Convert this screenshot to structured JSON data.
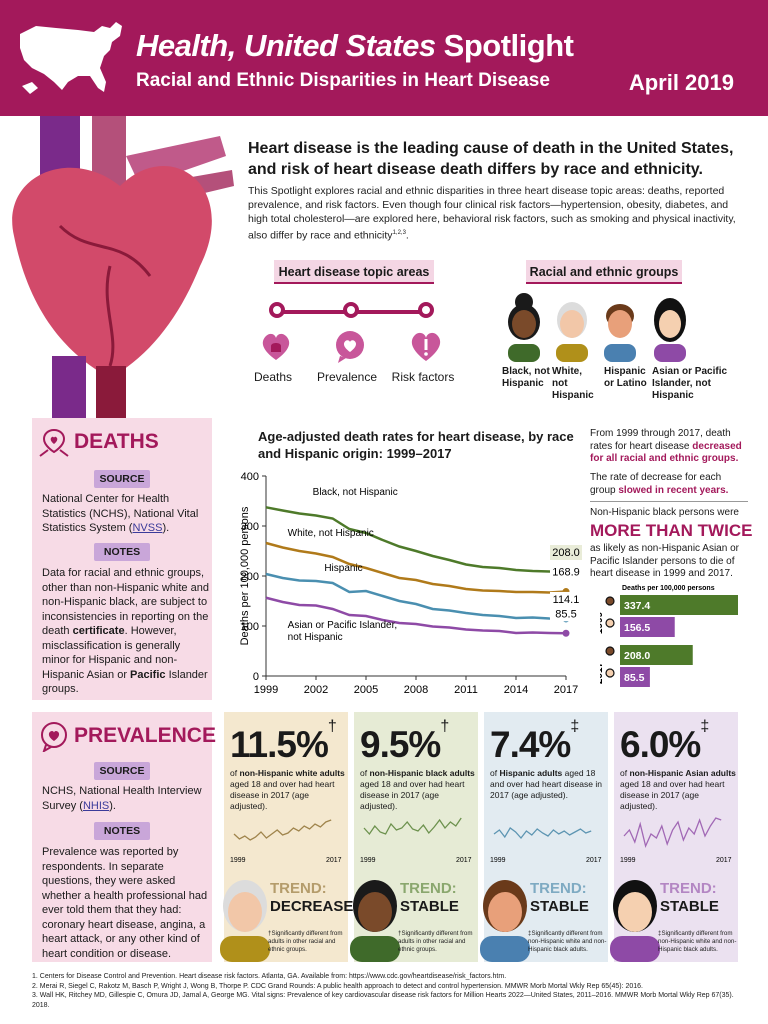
{
  "header": {
    "title_italic": "Health, United States",
    "title_rest": " Spotlight",
    "subtitle": "Racial and Ethnic Disparities in Heart Disease",
    "date": "April 2019"
  },
  "intro": {
    "headline": "Heart disease is the leading cause of death in the United States, and risk of heart disease death differs by race and ethnicity.",
    "body": "This Spotlight explores racial and ethnic disparities in three heart disease topic areas: deaths, reported prevalence, and risk factors. Even though four clinical risk factors—hypertension, obesity, diabetes, and high total cholesterol—are explored here, behavioral risk factors, such as smoking and physical inactivity, also differ by race and ethnicity",
    "body_sup": "1,2,3",
    "body_end": "."
  },
  "topics": {
    "heading": "Heart disease topic areas",
    "items": [
      "Deaths",
      "Prevalence",
      "Risk factors"
    ]
  },
  "groups": {
    "heading": "Racial and ethnic groups",
    "items": [
      "Black, not Hispanic",
      "White, not Hispanic",
      "Hispanic or Latino",
      "Asian or Pacific Islander, not Hispanic"
    ]
  },
  "deaths_panel": {
    "title": "DEATHS",
    "source_tag": "SOURCE",
    "source_text": "National Center for Health Statistics (NCHS), National Vital Statistics System (",
    "source_link": "NVSS",
    "source_end": ").",
    "notes_tag": "NOTES",
    "notes_text_1": "Data for racial and ethnic groups, other than non-Hispanic white and non-Hispanic black, are subject to inconsistencies in reporting on the death ",
    "notes_bold_1": "certificate",
    "notes_text_2": ". However, misclassification is generally minor for Hispanic and non-Hispanic Asian or ",
    "notes_bold_2": "Pacific",
    "notes_text_3": " Islander groups."
  },
  "chart_data": {
    "type": "line",
    "title": "Age-adjusted death rates for heart disease, by race and Hispanic origin: 1999–2017",
    "ylabel": "Deaths per 100,000 persons",
    "xlabel": "",
    "ylim": [
      0,
      400
    ],
    "yticks": [
      0,
      100,
      200,
      300,
      400
    ],
    "xticks": [
      1999,
      2002,
      2005,
      2008,
      2011,
      2014,
      2017
    ],
    "x": [
      1999,
      2000,
      2001,
      2002,
      2003,
      2004,
      2005,
      2006,
      2007,
      2008,
      2009,
      2010,
      2011,
      2012,
      2013,
      2014,
      2015,
      2016,
      2017
    ],
    "series": [
      {
        "name": "Black, not Hispanic",
        "color": "#4e7a2a",
        "end_label": "208.0",
        "values": [
          337.4,
          331,
          325,
          321,
          315,
          294,
          286,
          272,
          259,
          250,
          240,
          232,
          223,
          218,
          216,
          212,
          210,
          209,
          208.0
        ]
      },
      {
        "name": "White, not Hispanic",
        "color": "#b07a1a",
        "end_label": "168.9",
        "values": [
          266,
          257,
          250,
          245,
          238,
          224,
          216,
          206,
          196,
          192,
          184,
          180,
          174,
          171,
          170,
          168,
          168,
          167,
          168.9
        ]
      },
      {
        "name": "Hispanic",
        "color": "#4a8fb0",
        "end_label": "114.1",
        "values": [
          204,
          196,
          191,
          190,
          186,
          168,
          170,
          160,
          150,
          144,
          134,
          131,
          126,
          122,
          120,
          116,
          117,
          115,
          114.1
        ]
      },
      {
        "name": "Asian or Pacific Islander, not Hispanic",
        "color": "#8e4aa6",
        "end_label": "85.5",
        "values": [
          156.5,
          148,
          142,
          141,
          134,
          122,
          120,
          112,
          106,
          104,
          99,
          97,
          93,
          91,
          90,
          86,
          87,
          86,
          85.5
        ]
      }
    ],
    "series_labels": [
      "Black, not Hispanic",
      "White, not Hispanic",
      "Hispanic",
      "Asian or Pacific Islander, not Hispanic"
    ]
  },
  "right_col": {
    "p1_a": "From 1999 through 2017, death rates for heart disease ",
    "p1_b": "decreased for all racial and ethnic groups.",
    "p2_a": "The rate of decrease for each group ",
    "p2_b": "slowed in recent years.",
    "p3": "Non-Hispanic black persons were",
    "big": "MORE THAN TWICE",
    "p4": "as likely as non-Hispanic Asian or Pacific Islander persons to die of heart disease in 1999 and 2017.",
    "bars_caption": "Deaths per 100,000 persons",
    "bars": [
      {
        "year": "1999",
        "group": "Black",
        "value": 337.4,
        "label": "337.4",
        "color": "#4e7a2a"
      },
      {
        "year": "1999",
        "group": "Asian",
        "value": 156.5,
        "label": "156.5",
        "color": "#8e4aa6"
      },
      {
        "year": "2017",
        "group": "Black",
        "value": 208.0,
        "label": "208.0",
        "color": "#4e7a2a"
      },
      {
        "year": "2017",
        "group": "Asian",
        "value": 85.5,
        "label": "85.5",
        "color": "#8e4aa6"
      }
    ]
  },
  "prevalence_panel": {
    "title": "PREVALENCE",
    "source_tag": "SOURCE",
    "source_text": "NCHS, National Health Interview Survey (",
    "source_link": "NHIS",
    "source_end": ").",
    "notes_tag": "NOTES",
    "notes_text": "Prevalence was reported by respondents. In separate questions, they were asked whether a health professional had ever told them that they had: coronary heart disease, angina, a heart attack, or any other kind of heart condition or disease."
  },
  "prevalence_cards": [
    {
      "pct": "11.5%",
      "mark": "†",
      "group": "non-Hispanic white adults",
      "desc": " aged 18 and over had heart disease in 2017 (age adjusted).",
      "prefix": "of ",
      "trend_word": "TREND:",
      "trend": "DECREASE",
      "note": "†Significantly different from adults in other racial and ethnic groups.",
      "bg": "#f4e8cf",
      "line": "#8a6a2a",
      "y_start": "1999",
      "y_end": "2017"
    },
    {
      "pct": "9.5%",
      "mark": "†",
      "group": "non-Hispanic black adults",
      "desc": " aged 18 and over had heart disease in 2017 (age adjusted).",
      "prefix": "of ",
      "trend_word": "TREND:",
      "trend": "STABLE",
      "note": "†Significantly different from adults in other racial and ethnic groups.",
      "bg": "#e6ebd5",
      "line": "#4e7a2a",
      "y_start": "1999",
      "y_end": "2017"
    },
    {
      "pct": "7.4%",
      "mark": "‡",
      "group": "Hispanic adults",
      "desc": " aged 18 and over had heart disease in 2017 (age adjusted).",
      "prefix": "of ",
      "trend_word": "TREND:",
      "trend": "STABLE",
      "note": "‡Significantly different from non-Hispanic white and non-Hispanic black adults.",
      "bg": "#e2ebf1",
      "line": "#3c7fa3",
      "y_start": "1999",
      "y_end": "2017"
    },
    {
      "pct": "6.0%",
      "mark": "‡",
      "group": "non-Hispanic Asian adults",
      "desc": " aged 18 and over had heart disease in 2017 (age adjusted).",
      "prefix": "of ",
      "trend_word": "TREND:",
      "trend": "STABLE",
      "note": "‡Significantly different from non-Hispanic white and non-Hispanic black adults.",
      "bg": "#ebe1f0",
      "line": "#8e4aa6",
      "y_start": "1999",
      "y_end": "2017"
    }
  ],
  "footnotes": [
    "1. Centers for Disease Control and Prevention. Heart disease risk factors. Atlanta, GA. Available from: https://www.cdc.gov/heartdisease/risk_factors.htm.",
    "2. Merai R, Siegel C, Rakotz M, Basch P, Wright J, Wong B, Thorpe P. CDC Grand Rounds: A public health approach to detect and control hypertension. MMWR Morb Mortal Wkly Rep 65(45): 2016.",
    "3. Wall HK, Ritchey MD, Gillespie C, Omura JD, Jamal A, George MG. Vital signs: Prevalence of key cardiovascular disease risk factors for Million Hearts 2022—United States, 2011–2016. MMWR Morb Mortal Wkly Rep 67(35). 2018."
  ],
  "colors": {
    "brand": "#a3195b",
    "panel": "#f7dbe6",
    "tag": "#c9a6d9"
  }
}
